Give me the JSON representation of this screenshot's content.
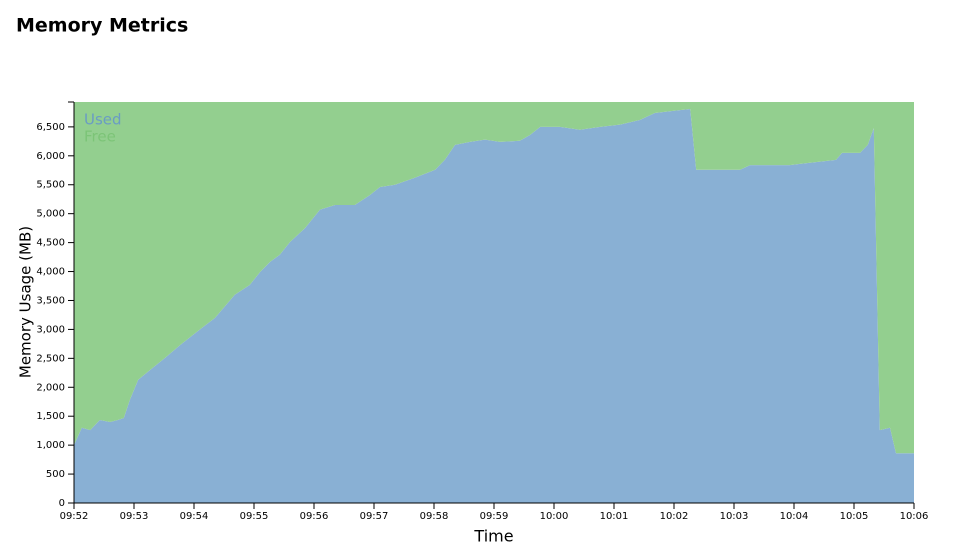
{
  "title": "Memory Metrics",
  "chart_data": {
    "type": "stacked-area",
    "x_label": "Time",
    "y_label": "Memory Usage (MB)",
    "x": [
      592,
      592.13,
      592.27,
      592.43,
      592.6,
      592.73,
      592.83,
      592.93,
      593.07,
      593.27,
      593.52,
      593.77,
      594.1,
      594.35,
      594.68,
      594.93,
      595.1,
      595.27,
      595.43,
      595.6,
      595.85,
      596.1,
      596.35,
      596.68,
      596.93,
      597.1,
      597.35,
      597.68,
      598.02,
      598.18,
      598.35,
      598.6,
      598.85,
      599.1,
      599.43,
      599.6,
      599.77,
      600.1,
      600.43,
      600.77,
      601.1,
      601.43,
      601.68,
      602.02,
      602.27,
      602.37,
      603.1,
      603.27,
      603.93,
      604.1,
      604.7,
      604.8,
      605.1,
      605.23,
      605.33,
      605.43,
      605.6,
      605.7,
      606
    ],
    "series": [
      {
        "name": "Used",
        "color": "#89b0d4",
        "label_color": "#6a9cc4",
        "values": [
          1000,
          1300,
          1260,
          1435,
          1400,
          1435,
          1470,
          1780,
          2130,
          2300,
          2510,
          2730,
          3000,
          3200,
          3600,
          3770,
          3990,
          4170,
          4290,
          4510,
          4750,
          5070,
          5150,
          5150,
          5320,
          5460,
          5500,
          5620,
          5760,
          5930,
          6190,
          6240,
          6280,
          6240,
          6260,
          6360,
          6500,
          6500,
          6450,
          6500,
          6540,
          6620,
          6740,
          6780,
          6810,
          5760,
          5760,
          5840,
          5840,
          5860,
          5930,
          6050,
          6050,
          6190,
          6480,
          1260,
          1300,
          860,
          860
        ]
      },
      {
        "name": "Free",
        "color": "#93cf8f",
        "label_color": "#7cc477",
        "values": [
          5930,
          5630,
          5670,
          5495,
          5530,
          5495,
          5460,
          5150,
          4800,
          4630,
          4420,
          4200,
          3930,
          3730,
          3330,
          3160,
          2940,
          2760,
          2640,
          2420,
          2180,
          1860,
          1780,
          1780,
          1610,
          1470,
          1430,
          1310,
          1170,
          1000,
          740,
          690,
          650,
          690,
          670,
          570,
          430,
          430,
          480,
          430,
          390,
          310,
          190,
          150,
          120,
          1170,
          1170,
          1090,
          1090,
          1070,
          1000,
          880,
          880,
          740,
          450,
          5670,
          5630,
          6070,
          6070
        ]
      }
    ],
    "xlim": [
      592,
      606
    ],
    "xticks": [
      {
        "value": 592,
        "label": "09:52"
      },
      {
        "value": 593,
        "label": "09:53"
      },
      {
        "value": 594,
        "label": "09:54"
      },
      {
        "value": 595,
        "label": "09:55"
      },
      {
        "value": 596,
        "label": "09:56"
      },
      {
        "value": 597,
        "label": "09:57"
      },
      {
        "value": 598,
        "label": "09:58"
      },
      {
        "value": 599,
        "label": "09:59"
      },
      {
        "value": 600,
        "label": "10:00"
      },
      {
        "value": 601,
        "label": "10:01"
      },
      {
        "value": 602,
        "label": "10:02"
      },
      {
        "value": 603,
        "label": "10:03"
      },
      {
        "value": 604,
        "label": "10:04"
      },
      {
        "value": 605,
        "label": "10:05"
      },
      {
        "value": 606,
        "label": "10:06"
      }
    ],
    "ylim": [
      0,
      6930
    ],
    "yticks": [
      0,
      500,
      {
        "value": 1000,
        "label": "1,000"
      },
      {
        "value": 1500,
        "label": "1,500"
      },
      {
        "value": 2000,
        "label": "2,000"
      },
      {
        "value": 2500,
        "label": "2,500"
      },
      {
        "value": 3000,
        "label": "3,000"
      },
      {
        "value": 3500,
        "label": "3,500"
      },
      {
        "value": 4000,
        "label": "4,000"
      },
      {
        "value": 4500,
        "label": "4,500"
      },
      {
        "value": 5000,
        "label": "5,000"
      },
      {
        "value": 5500,
        "label": "5,500"
      },
      {
        "value": 6000,
        "label": "6,000"
      },
      {
        "value": 6500,
        "label": "6,500"
      }
    ]
  }
}
